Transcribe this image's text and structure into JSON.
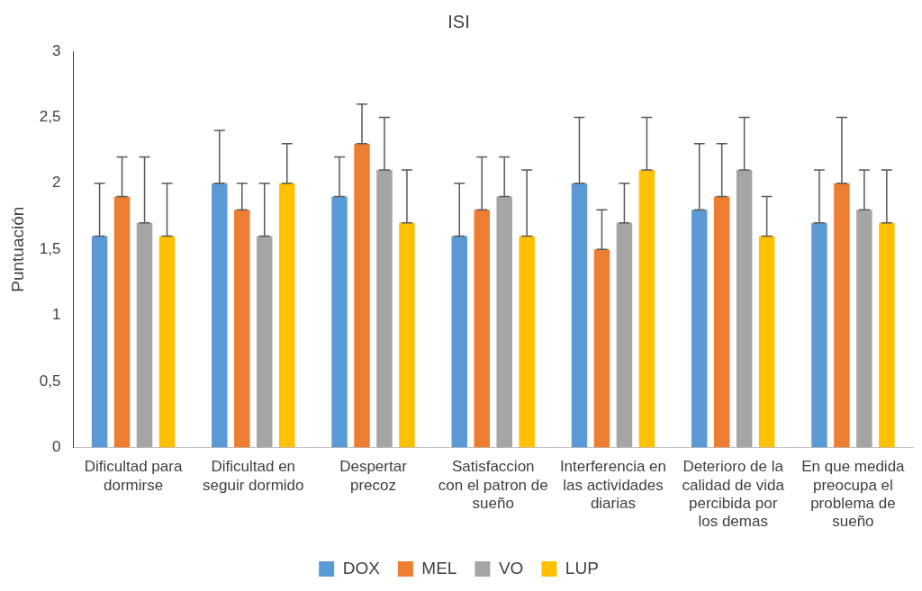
{
  "chart_data": {
    "type": "bar",
    "title": "ISI",
    "ylabel": "Puntuación",
    "categories": [
      "Dificultad para dormirse",
      "Dificultad en seguir dormido",
      "Despertar precoz",
      "Satisfaccion con el patron de sueño",
      "Interferencia en las actividades diarias",
      "Deterioro de la calidad de vida percibida por los demas",
      "En que medida preocupa el problema de sueño"
    ],
    "series": [
      {
        "name": "DOX",
        "color": "#5b9bd5",
        "values": [
          1.6,
          2.0,
          1.9,
          1.6,
          2.0,
          1.8,
          1.7
        ],
        "errors": [
          [
            1.6,
            2.0
          ],
          [
            2.0,
            2.4
          ],
          [
            1.9,
            2.2
          ],
          [
            1.6,
            2.0
          ],
          [
            2.0,
            2.5
          ],
          [
            1.8,
            2.3
          ],
          [
            1.7,
            2.1
          ]
        ]
      },
      {
        "name": "MEL",
        "color": "#ed7d31",
        "values": [
          1.9,
          1.8,
          2.3,
          1.8,
          1.5,
          1.9,
          2.0
        ],
        "errors": [
          [
            1.9,
            2.2
          ],
          [
            1.8,
            2.0
          ],
          [
            2.3,
            2.6
          ],
          [
            1.8,
            2.2
          ],
          [
            1.5,
            1.8
          ],
          [
            1.9,
            2.3
          ],
          [
            2.0,
            2.5
          ]
        ]
      },
      {
        "name": "VO",
        "color": "#a5a5a5",
        "values": [
          1.7,
          1.6,
          2.1,
          1.9,
          1.7,
          2.1,
          1.8
        ],
        "errors": [
          [
            1.7,
            2.2
          ],
          [
            1.6,
            2.0
          ],
          [
            2.1,
            2.5
          ],
          [
            1.9,
            2.2
          ],
          [
            1.7,
            2.0
          ],
          [
            2.1,
            2.5
          ],
          [
            1.8,
            2.1
          ]
        ]
      },
      {
        "name": "LUP",
        "color": "#ffc000",
        "values": [
          1.6,
          2.0,
          1.7,
          1.6,
          2.1,
          1.6,
          1.7
        ],
        "errors": [
          [
            1.6,
            2.0
          ],
          [
            2.0,
            2.3
          ],
          [
            1.7,
            2.1
          ],
          [
            1.6,
            2.1
          ],
          [
            2.1,
            2.5
          ],
          [
            1.6,
            1.9
          ],
          [
            1.7,
            2.1
          ]
        ]
      }
    ],
    "ylim": [
      0,
      3
    ],
    "yticks": [
      0,
      {
        "value": 0.5,
        "label": "0,5"
      },
      1,
      {
        "value": 1.5,
        "label": "1,5"
      },
      2,
      {
        "value": 2.5,
        "label": "2,5"
      },
      3
    ],
    "grid": false,
    "legend": "bottom"
  }
}
